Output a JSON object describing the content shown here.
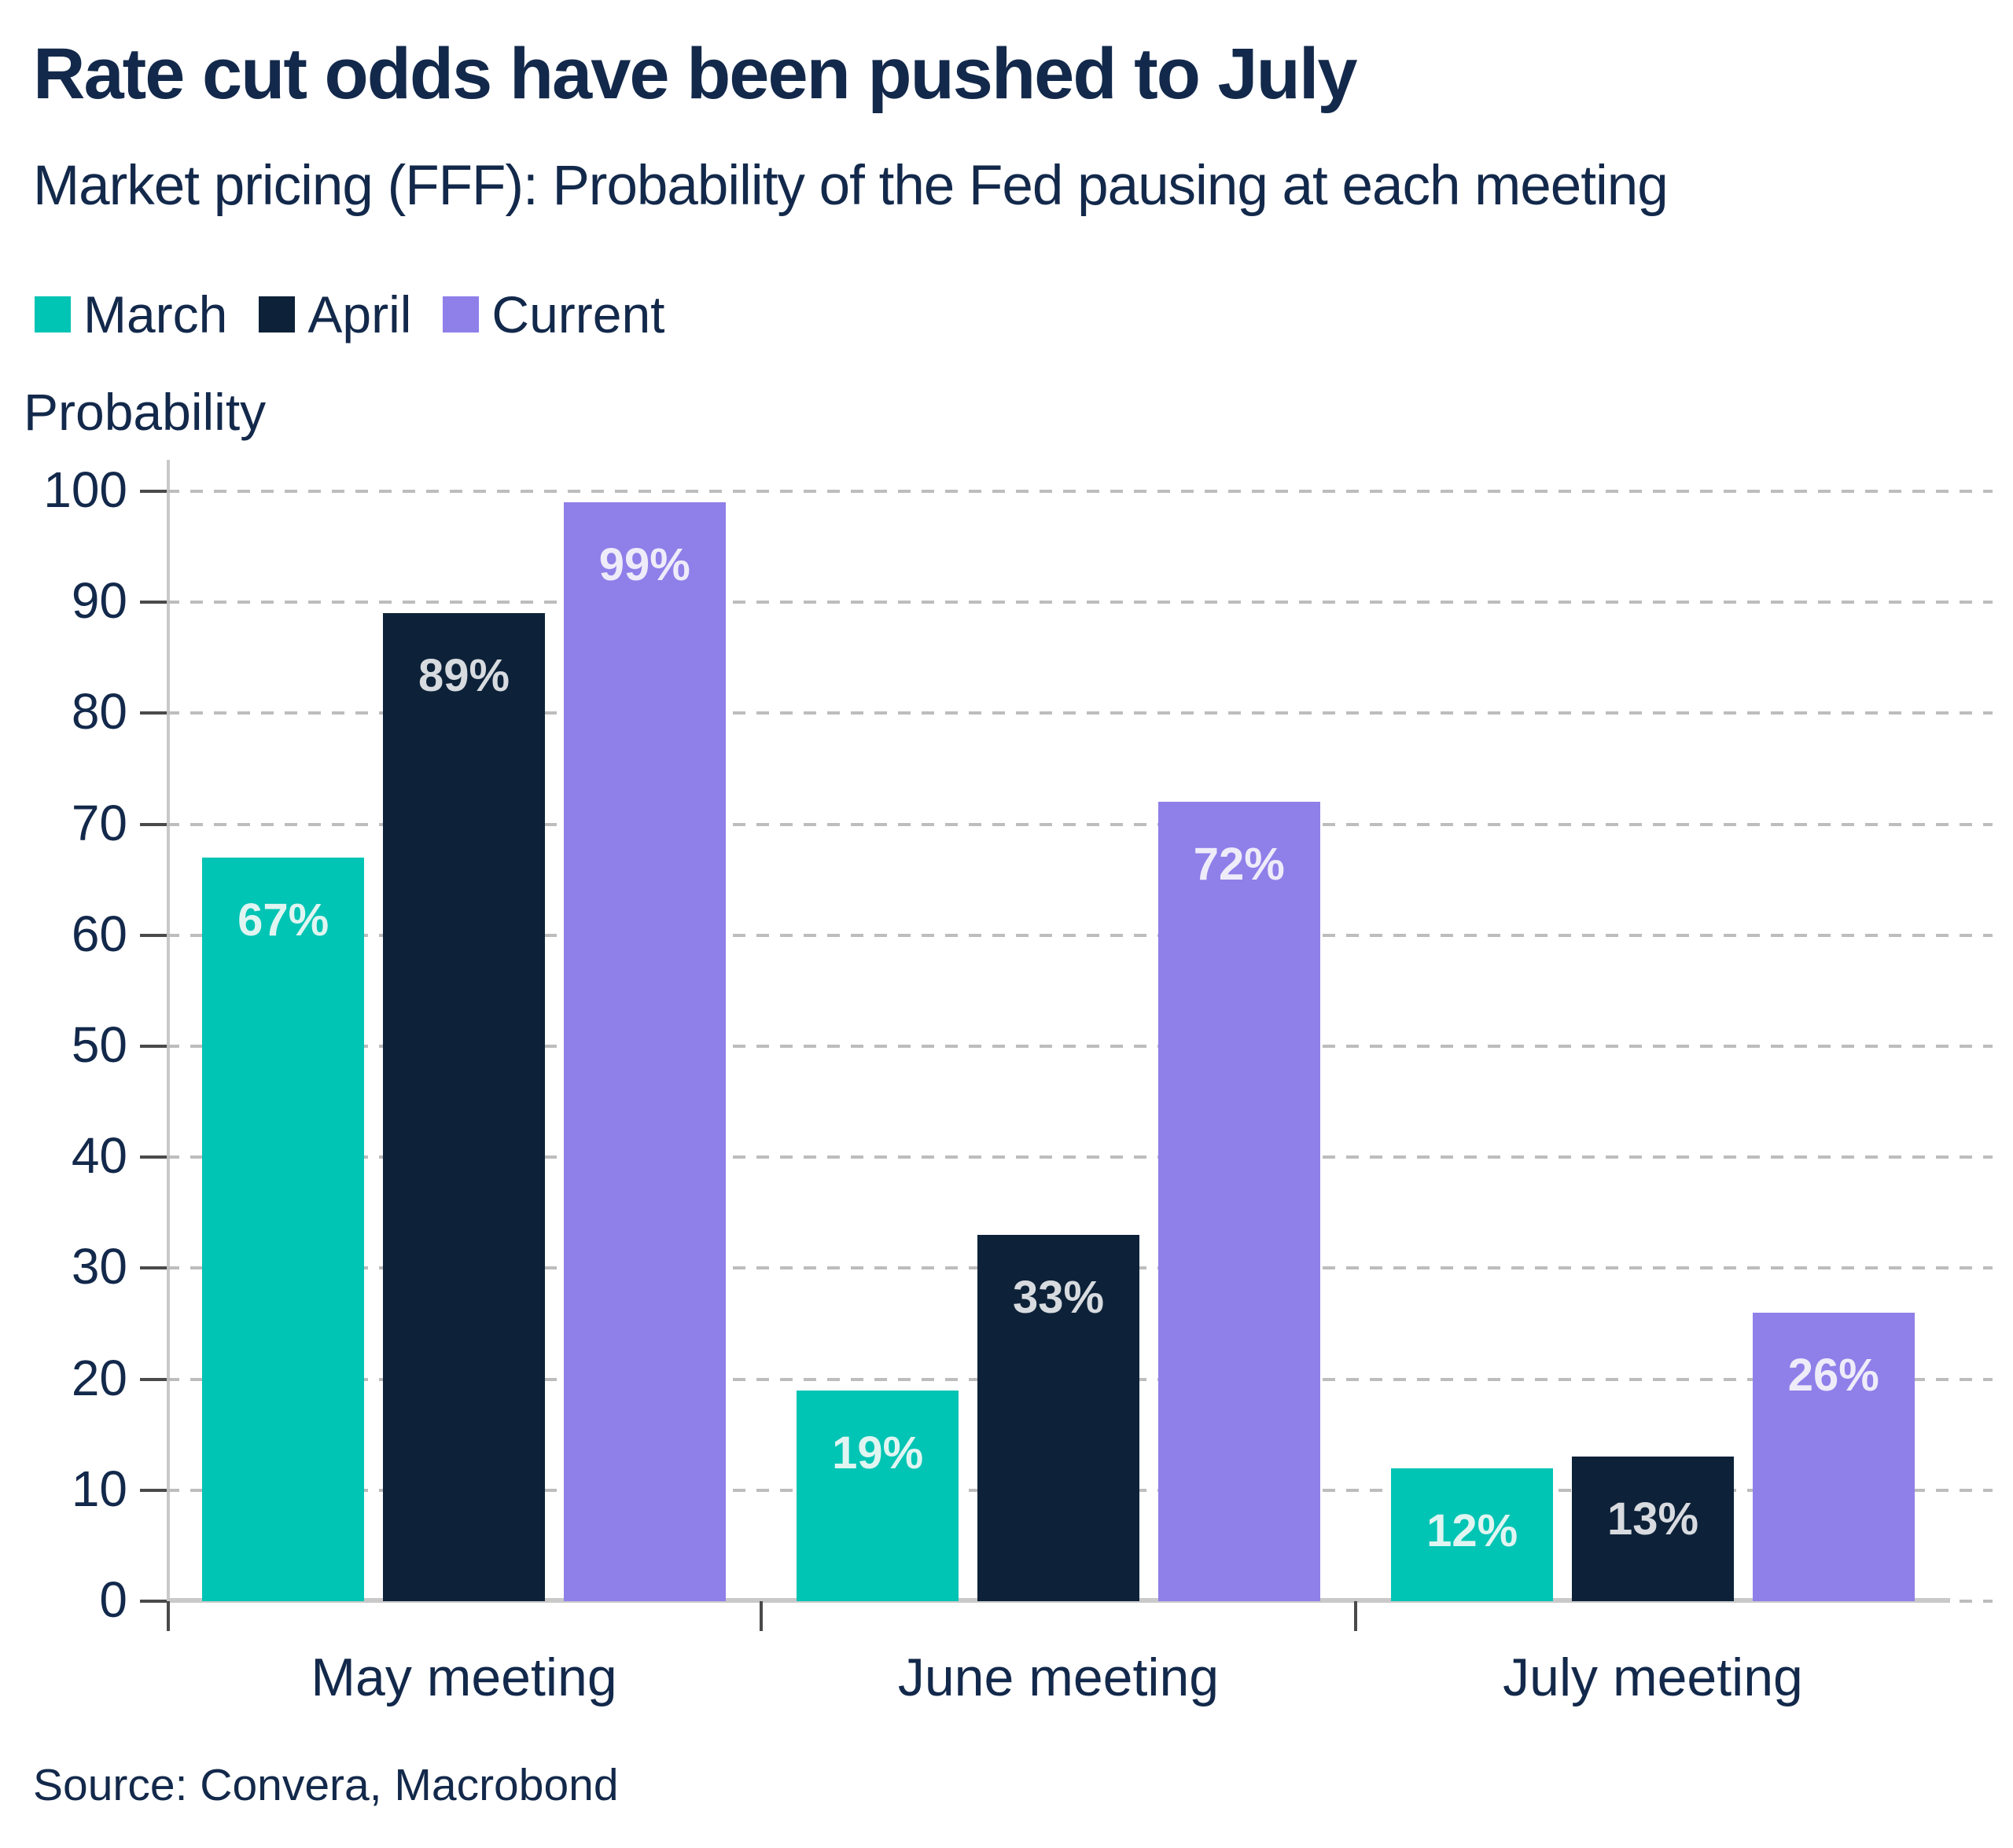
{
  "header": {
    "title": "Rate cut odds have been pushed to July",
    "subtitle": "Market pricing (FFF): Probability of the Fed pausing at each meeting"
  },
  "axis_title": "Probability",
  "source": "Source: Convera, Macrobond",
  "colors": {
    "text_navy": "#13294B",
    "gridline": "#BDBDBD",
    "axis_line": "#C9C9C9",
    "tick": "#4A4A4A"
  },
  "chart_data": {
    "type": "bar",
    "title": "Rate cut odds have been pushed to July",
    "subtitle": "Market pricing (FFF): Probability of the Fed pausing at each meeting",
    "categories": [
      "May meeting",
      "June meeting",
      "July meeting"
    ],
    "series": [
      {
        "name": "March",
        "color": "#00C4B4",
        "label_color": "#E0F5F1",
        "values": [
          67,
          19,
          12
        ],
        "labels": [
          "67%",
          "19%",
          "12%"
        ]
      },
      {
        "name": "April",
        "color": "#0D2239",
        "label_color": "#D7DBDF",
        "values": [
          89,
          33,
          13
        ],
        "labels": [
          "89%",
          "33%",
          "13%"
        ]
      },
      {
        "name": "Current",
        "color": "#8F7FE9",
        "label_color": "#EFECFA",
        "values": [
          99,
          72,
          26
        ],
        "labels": [
          "99%",
          "72%",
          "26%"
        ]
      }
    ],
    "ylabel": "Probability",
    "xlabel": "",
    "ylim": [
      0,
      100
    ],
    "ytick_step": 10,
    "grid": "horizontal-dashed",
    "legend_position": "top-left"
  }
}
